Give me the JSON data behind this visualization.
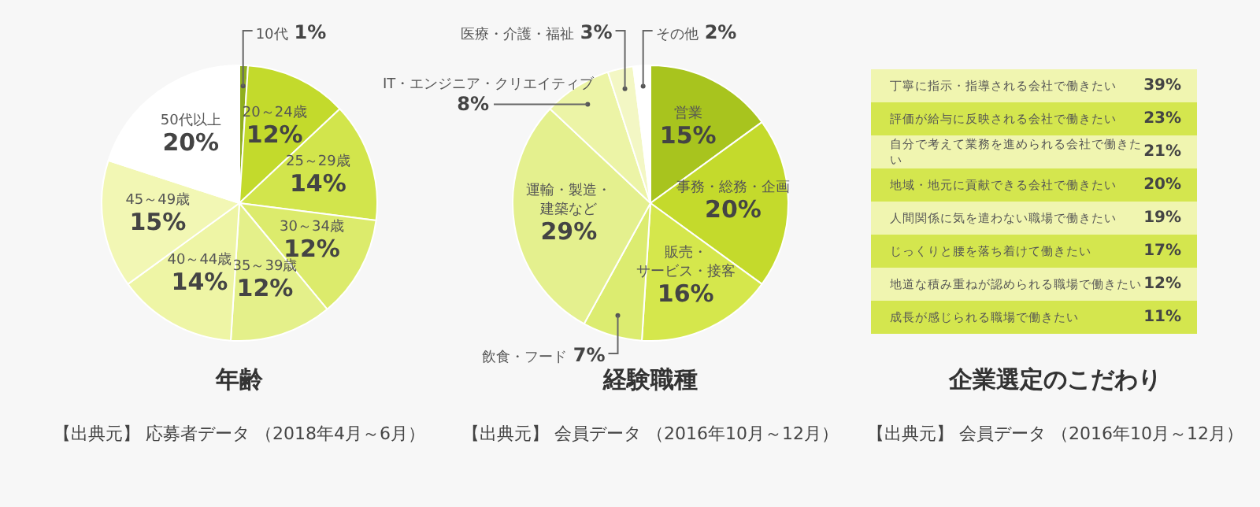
{
  "chart_data": [
    {
      "type": "pie",
      "title": "年齢",
      "categories": [
        "10代",
        "20～24歳",
        "25～29歳",
        "30～34歳",
        "35～39歳",
        "40～44歳",
        "45～49歳",
        "50代以上"
      ],
      "values": [
        1,
        12,
        14,
        12,
        12,
        14,
        15,
        20
      ],
      "value_labels": [
        "1%",
        "12%",
        "14%",
        "12%",
        "12%",
        "14%",
        "15%",
        "20%"
      ],
      "colors": [
        "#8fae1e",
        "#c3da2c",
        "#d2e54c",
        "#dceb6c",
        "#e4f08a",
        "#eef5a5",
        "#f2f7b4",
        "#ffffff"
      ],
      "annotations": [
        "【出典元】 応募者データ （2018年4月～6月）"
      ]
    },
    {
      "type": "pie",
      "title": "経験職種",
      "categories": [
        "営業",
        "事務・総務・企画",
        "販売・サービス・接客",
        "飲食・フード",
        "運輸・製造・建築など",
        "IT・エンジニア・クリエイティブ",
        "医療・介護・福祉",
        "その他"
      ],
      "values": [
        15,
        20,
        16,
        7,
        29,
        8,
        3,
        2
      ],
      "value_labels": [
        "15%",
        "20%",
        "16%",
        "7%",
        "29%",
        "8%",
        "3%",
        "2%"
      ],
      "colors": [
        "#a8c41e",
        "#c4da2c",
        "#d5e74c",
        "#dcec70",
        "#e4f08e",
        "#ecf4a6",
        "#f3f7c4",
        "#ffffff"
      ],
      "annotations": [
        "【出典元】 会員データ （2016年10月～12月）"
      ]
    },
    {
      "type": "other",
      "title": "企業選定のこだわり",
      "categories": [
        "丁寧に指示・指導される会社で働きたい",
        "評価が給与に反映される会社で働きたい",
        "自分で考えて業務を進められる会社で働きたい",
        "地域・地元に貢献できる会社で働きたい",
        "人間関係に気を遣わない職場で働きたい",
        "じっくりと腰を落ち着けて働きたい",
        "地道な積み重ねが認められる職場で働きたい",
        "成長が感じられる職場で働きたい"
      ],
      "values": [
        39,
        23,
        21,
        20,
        19,
        17,
        12,
        11
      ],
      "value_labels": [
        "39%",
        "23%",
        "21%",
        "20%",
        "19%",
        "17%",
        "12%",
        "11%"
      ],
      "colors": [
        "#f0f5b0",
        "#d4e64e",
        "#f0f5b0",
        "#d4e64e",
        "#f0f5b0",
        "#d4e64e",
        "#f0f5b0",
        "#d4e64e"
      ],
      "annotations": [
        "【出典元】 会員データ （2016年10月～12月）"
      ]
    }
  ]
}
